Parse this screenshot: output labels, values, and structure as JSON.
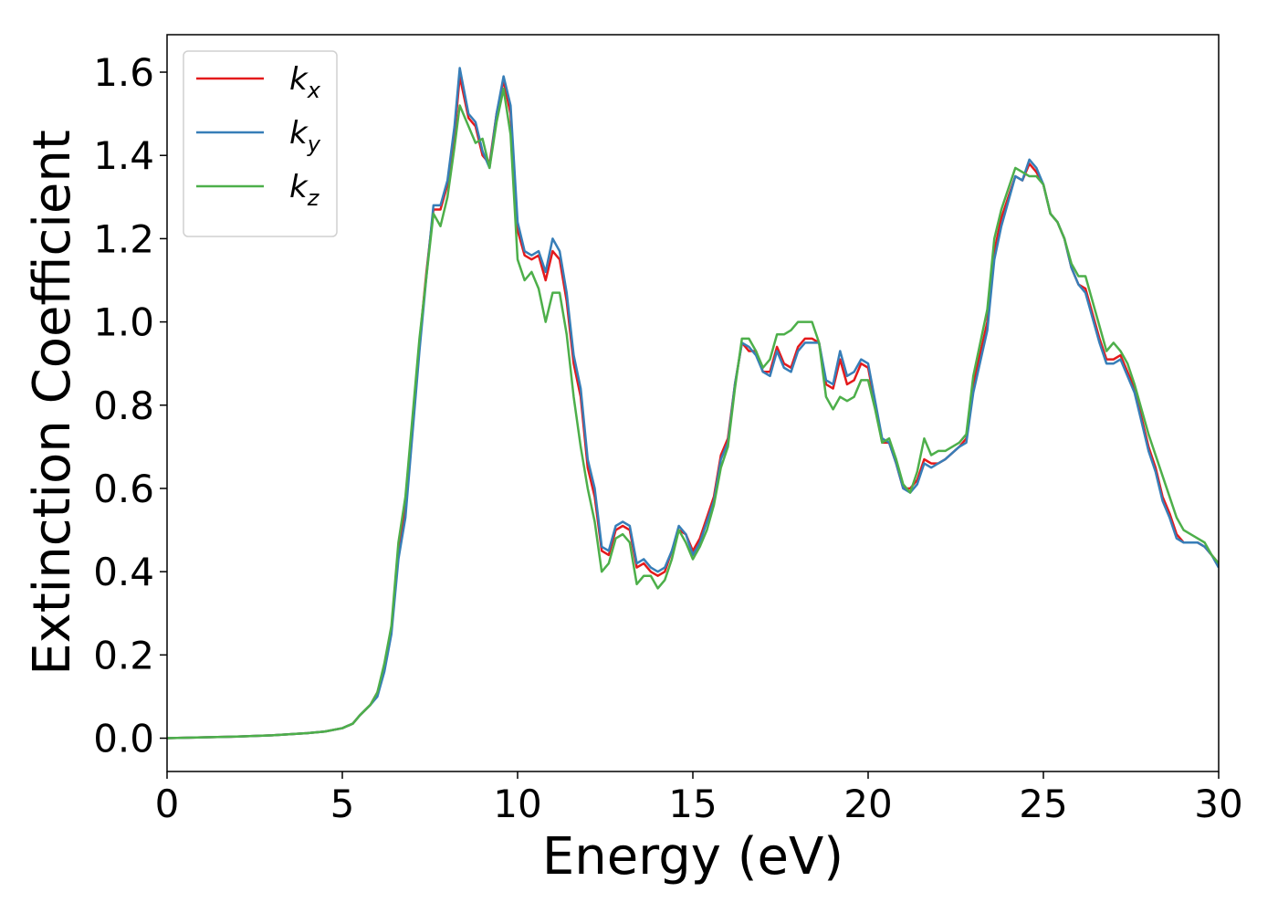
{
  "chart_data": {
    "type": "line",
    "xlabel": "Energy (eV)",
    "ylabel": "Extinction Coefficient",
    "x": [
      0,
      1,
      2,
      3,
      4,
      4.5,
      5,
      5.3,
      5.5,
      5.8,
      6,
      6.2,
      6.4,
      6.6,
      6.8,
      7,
      7.2,
      7.4,
      7.6,
      7.8,
      8,
      8.2,
      8.35,
      8.6,
      8.8,
      9,
      9.2,
      9.4,
      9.6,
      9.8,
      10,
      10.2,
      10.4,
      10.6,
      10.8,
      11,
      11.2,
      11.4,
      11.6,
      11.8,
      12,
      12.2,
      12.4,
      12.6,
      12.8,
      13,
      13.2,
      13.4,
      13.6,
      13.8,
      14,
      14.2,
      14.4,
      14.6,
      14.8,
      15,
      15.2,
      15.4,
      15.6,
      15.8,
      16,
      16.2,
      16.4,
      16.6,
      16.8,
      17,
      17.2,
      17.4,
      17.6,
      17.8,
      18,
      18.2,
      18.4,
      18.6,
      18.8,
      19,
      19.2,
      19.4,
      19.6,
      19.8,
      20,
      20.2,
      20.4,
      20.6,
      20.8,
      21,
      21.2,
      21.4,
      21.6,
      21.8,
      22,
      22.2,
      22.6,
      22.8,
      23,
      23.4,
      23.6,
      23.8,
      24,
      24.2,
      24.4,
      24.6,
      24.8,
      25,
      25.2,
      25.4,
      25.6,
      25.8,
      26,
      26.2,
      26.4,
      26.6,
      26.8,
      27,
      27.2,
      27.4,
      27.6,
      27.8,
      28,
      28.2,
      28.4,
      28.6,
      28.8,
      29,
      29.4,
      29.6,
      29.8,
      30
    ],
    "series": [
      {
        "name": "kx",
        "color": "#e41a1c",
        "values": [
          0,
          0.002,
          0.004,
          0.007,
          0.012,
          0.016,
          0.024,
          0.035,
          0.055,
          0.08,
          0.11,
          0.17,
          0.26,
          0.45,
          0.55,
          0.75,
          0.95,
          1.12,
          1.27,
          1.27,
          1.33,
          1.45,
          1.59,
          1.49,
          1.47,
          1.4,
          1.38,
          1.5,
          1.58,
          1.5,
          1.22,
          1.16,
          1.15,
          1.16,
          1.1,
          1.17,
          1.15,
          1.05,
          0.9,
          0.82,
          0.65,
          0.58,
          0.45,
          0.44,
          0.5,
          0.51,
          0.5,
          0.41,
          0.42,
          0.4,
          0.39,
          0.4,
          0.45,
          0.5,
          0.49,
          0.45,
          0.48,
          0.53,
          0.58,
          0.68,
          0.72,
          0.85,
          0.95,
          0.93,
          0.93,
          0.88,
          0.88,
          0.94,
          0.9,
          0.89,
          0.94,
          0.96,
          0.96,
          0.95,
          0.85,
          0.84,
          0.91,
          0.85,
          0.86,
          0.9,
          0.89,
          0.8,
          0.71,
          0.71,
          0.66,
          0.6,
          0.6,
          0.62,
          0.67,
          0.66,
          0.66,
          0.67,
          0.7,
          0.72,
          0.85,
          1.0,
          1.17,
          1.25,
          1.3,
          1.35,
          1.34,
          1.38,
          1.36,
          1.33,
          1.26,
          1.24,
          1.2,
          1.13,
          1.09,
          1.08,
          1.02,
          0.96,
          0.91,
          0.91,
          0.92,
          0.88,
          0.84,
          0.77,
          0.7,
          0.65,
          0.58,
          0.54,
          0.49,
          0.47,
          0.47,
          0.46,
          0.44,
          0.42
        ]
      },
      {
        "name": "ky",
        "color": "#377eb8",
        "values": [
          0,
          0.002,
          0.004,
          0.007,
          0.012,
          0.016,
          0.024,
          0.035,
          0.055,
          0.08,
          0.1,
          0.16,
          0.25,
          0.43,
          0.53,
          0.73,
          0.93,
          1.11,
          1.28,
          1.28,
          1.34,
          1.47,
          1.61,
          1.5,
          1.48,
          1.41,
          1.37,
          1.5,
          1.59,
          1.52,
          1.24,
          1.17,
          1.16,
          1.17,
          1.12,
          1.2,
          1.17,
          1.07,
          0.92,
          0.84,
          0.67,
          0.6,
          0.46,
          0.45,
          0.51,
          0.52,
          0.51,
          0.42,
          0.43,
          0.41,
          0.4,
          0.41,
          0.45,
          0.51,
          0.49,
          0.44,
          0.47,
          0.52,
          0.57,
          0.67,
          0.71,
          0.85,
          0.95,
          0.94,
          0.92,
          0.88,
          0.87,
          0.93,
          0.89,
          0.88,
          0.93,
          0.95,
          0.95,
          0.95,
          0.86,
          0.85,
          0.93,
          0.87,
          0.88,
          0.91,
          0.9,
          0.81,
          0.72,
          0.71,
          0.66,
          0.6,
          0.59,
          0.61,
          0.66,
          0.65,
          0.66,
          0.67,
          0.7,
          0.71,
          0.83,
          0.98,
          1.15,
          1.23,
          1.29,
          1.35,
          1.34,
          1.39,
          1.37,
          1.33,
          1.26,
          1.24,
          1.2,
          1.13,
          1.09,
          1.07,
          1.01,
          0.95,
          0.9,
          0.9,
          0.91,
          0.87,
          0.83,
          0.76,
          0.69,
          0.64,
          0.57,
          0.53,
          0.48,
          0.47,
          0.47,
          0.46,
          0.44,
          0.41
        ]
      },
      {
        "name": "kz",
        "color": "#4daf4a",
        "values": [
          0,
          0.002,
          0.004,
          0.007,
          0.012,
          0.016,
          0.024,
          0.035,
          0.055,
          0.08,
          0.11,
          0.18,
          0.27,
          0.47,
          0.58,
          0.77,
          0.96,
          1.11,
          1.26,
          1.23,
          1.3,
          1.42,
          1.52,
          1.47,
          1.43,
          1.44,
          1.37,
          1.48,
          1.56,
          1.45,
          1.15,
          1.1,
          1.12,
          1.08,
          1.0,
          1.07,
          1.07,
          0.97,
          0.82,
          0.7,
          0.6,
          0.52,
          0.4,
          0.42,
          0.48,
          0.49,
          0.47,
          0.37,
          0.39,
          0.39,
          0.36,
          0.38,
          0.43,
          0.5,
          0.47,
          0.43,
          0.46,
          0.5,
          0.56,
          0.65,
          0.7,
          0.84,
          0.96,
          0.96,
          0.93,
          0.89,
          0.91,
          0.97,
          0.97,
          0.98,
          1.0,
          1.0,
          1.0,
          0.95,
          0.82,
          0.79,
          0.82,
          0.81,
          0.82,
          0.86,
          0.86,
          0.79,
          0.71,
          0.72,
          0.67,
          0.61,
          0.59,
          0.64,
          0.72,
          0.68,
          0.69,
          0.69,
          0.71,
          0.73,
          0.87,
          1.03,
          1.2,
          1.27,
          1.32,
          1.37,
          1.36,
          1.35,
          1.35,
          1.33,
          1.26,
          1.24,
          1.2,
          1.14,
          1.11,
          1.11,
          1.05,
          0.99,
          0.93,
          0.95,
          0.93,
          0.9,
          0.85,
          0.79,
          0.73,
          0.68,
          0.63,
          0.58,
          0.53,
          0.5,
          0.48,
          0.47,
          0.44,
          0.42
        ]
      }
    ],
    "xlim": [
      0,
      30
    ],
    "xticks": [
      0,
      5,
      10,
      15,
      20,
      25,
      30
    ],
    "ylim": [
      -0.08,
      1.69
    ],
    "yticks": [
      {
        "value": 0,
        "label": "0.0"
      },
      0.2,
      0.4,
      0.6,
      0.8,
      {
        "value": 1,
        "label": "1.0"
      },
      1.2,
      1.4,
      1.6
    ],
    "legend": "upper left",
    "grid": false
  }
}
